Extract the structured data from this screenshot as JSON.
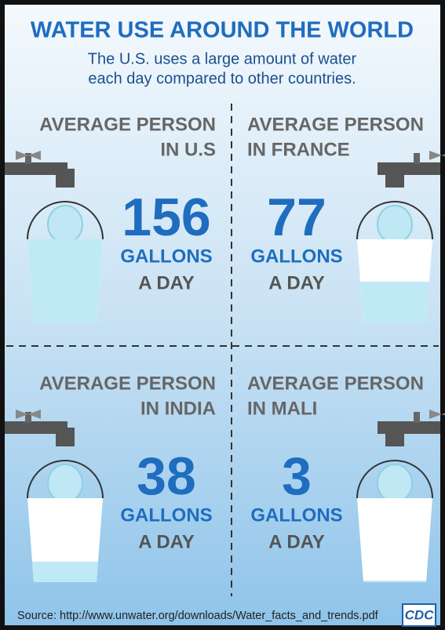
{
  "header": {
    "title": "WATER USE AROUND THE WORLD",
    "subtitle": [
      "The U.S. uses a large amount of water",
      "each day compared to other countries."
    ]
  },
  "panels": [
    {
      "label": [
        "AVERAGE PERSON",
        "IN U.S"
      ],
      "amount": 156,
      "unit": [
        "GALLONS",
        "A DAY"
      ]
    },
    {
      "label": [
        "AVERAGE PERSON",
        "IN FRANCE"
      ],
      "amount": 77,
      "unit": [
        "GALLONS",
        "A DAY"
      ]
    },
    {
      "label": [
        "AVERAGE PERSON",
        "IN INDIA"
      ],
      "amount": 38,
      "unit": [
        "GALLONS",
        "A DAY"
      ]
    },
    {
      "label": [
        "AVERAGE PERSON",
        "IN MALI"
      ],
      "amount": 3,
      "unit": [
        "GALLONS",
        "A DAY"
      ]
    }
  ],
  "footer": {
    "source": "Source: http://www.unwater.org/downloads/Water_facts_and_trends.pdf",
    "logo": "CDC"
  }
}
